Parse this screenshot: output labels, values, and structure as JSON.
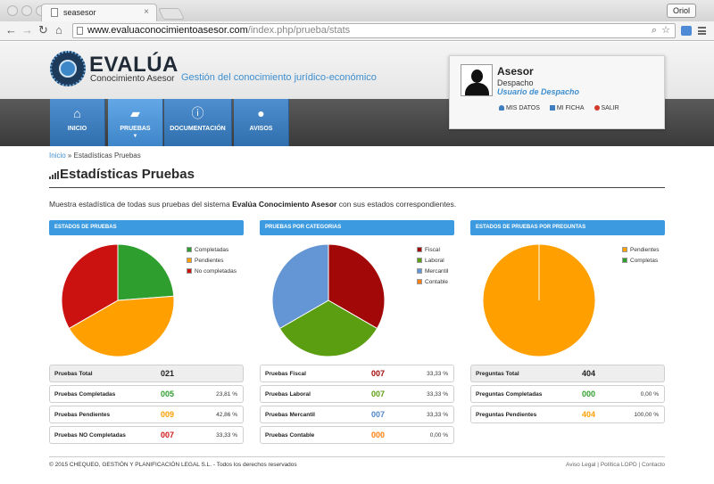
{
  "browser": {
    "tab_title": "seasesor",
    "tab_close": "×",
    "user_button": "Oriol",
    "url_host": "www.evaluaconocimientoasesor.com",
    "url_path": "/index.php/prueba/stats",
    "nav_back": "←",
    "nav_forward": "→",
    "nav_reload": "↻",
    "nav_home": "⌂",
    "search_glyph": "⌕",
    "star_glyph": "☆"
  },
  "site": {
    "logo_title": "EVALÚA",
    "logo_subtitle": "Conocimiento Asesor",
    "tagline": "Gestión del conocimiento jurídico-económico"
  },
  "user": {
    "name": "Asesor",
    "department": "Despacho",
    "role": "Usuario de Despacho",
    "links": [
      {
        "label": "MIS DATOS",
        "icon": "user-icon",
        "color": "#3f7fc0"
      },
      {
        "label": "MI FICHA",
        "icon": "bookmark-icon",
        "color": "#3f7fc0"
      },
      {
        "label": "SALIR",
        "icon": "logout-arrow-icon",
        "color": "#d03b2b"
      }
    ]
  },
  "nav": {
    "items": [
      {
        "label": "INICIO",
        "icon": "home-icon",
        "glyph": "⌂",
        "active": false
      },
      {
        "label": "PRUEBAS",
        "icon": "folders-icon",
        "glyph": "▰",
        "active": true,
        "caret": "▼"
      },
      {
        "label": "DOCUMENTACIÓN",
        "icon": "info-icon",
        "glyph": "ⓘ",
        "active": false
      },
      {
        "label": "AVISOS",
        "icon": "chat-bubbles-icon",
        "glyph": "●",
        "active": false
      }
    ]
  },
  "breadcrumb": {
    "home": "Inicio",
    "separator": "»",
    "current": "Estadísticas Pruebas"
  },
  "page": {
    "title": "Estadísticas Pruebas",
    "intro_before": "Muestra estadística de todas sus pruebas del sistema ",
    "intro_bold": "Evalúa Conocimiento Asesor",
    "intro_after": " con sus estados correspondientes."
  },
  "chart_data": [
    {
      "type": "pie",
      "title": "ESTADOS DE PRUEBAS",
      "legend_position": "top-right",
      "slices": [
        {
          "label": "Completadas",
          "value": 23.81,
          "color": "#2e9e2e"
        },
        {
          "label": "Pendientes",
          "value": 42.86,
          "color": "#ff9f00"
        },
        {
          "label": "No completadas",
          "value": 33.33,
          "color": "#cc1111"
        }
      ]
    },
    {
      "type": "pie",
      "title": "PRUEBAS POR CATEGORIAS",
      "legend_position": "top-right",
      "slices": [
        {
          "label": "Fiscal",
          "value": 33.33,
          "color": "#a30808"
        },
        {
          "label": "Laboral",
          "value": 33.33,
          "color": "#5c9e12"
        },
        {
          "label": "Mercantil",
          "value": 33.33,
          "color": "#6495d4"
        },
        {
          "label": "Contable",
          "value": 0,
          "color": "#ff7f0e"
        }
      ]
    },
    {
      "type": "pie",
      "title": "ESTADOS DE PRUEBAS POR PREGUNTAS",
      "legend_position": "top-right",
      "slices": [
        {
          "label": "Pendientes",
          "value": 100,
          "color": "#ff9f00"
        },
        {
          "label": "Completas",
          "value": 0,
          "color": "#2e9e2e"
        }
      ]
    }
  ],
  "stats": [
    {
      "rows": [
        {
          "label": "Pruebas Total",
          "value": "021",
          "pct": "",
          "color": "#222222",
          "total": true
        },
        {
          "label": "Pruebas Completadas",
          "value": "005",
          "pct": "23,81 %",
          "color": "#2e9e2e",
          "total": false
        },
        {
          "label": "Pruebas Pendientes",
          "value": "009",
          "pct": "42,86 %",
          "color": "#ff9f00",
          "total": false
        },
        {
          "label": "Pruebas NO Completadas",
          "value": "007",
          "pct": "33,33 %",
          "color": "#d01a1a",
          "total": false
        }
      ]
    },
    {
      "rows": [
        {
          "label": "Pruebas Fiscal",
          "value": "007",
          "pct": "33,33 %",
          "color": "#a30808",
          "total": false
        },
        {
          "label": "Pruebas Laboral",
          "value": "007",
          "pct": "33,33 %",
          "color": "#5c9e12",
          "total": false
        },
        {
          "label": "Pruebas Mercantil",
          "value": "007",
          "pct": "33,33 %",
          "color": "#4f86c8",
          "total": false
        },
        {
          "label": "Pruebas Contable",
          "value": "000",
          "pct": "0,00 %",
          "color": "#ff7f0e",
          "total": false
        }
      ]
    },
    {
      "rows": [
        {
          "label": "Preguntas Total",
          "value": "404",
          "pct": "",
          "color": "#222222",
          "total": true
        },
        {
          "label": "Preguntas Completadas",
          "value": "000",
          "pct": "0,00 %",
          "color": "#2e9e2e",
          "total": false
        },
        {
          "label": "Preguntas Pendientes",
          "value": "404",
          "pct": "100,00 %",
          "color": "#ff9f00",
          "total": false
        }
      ]
    }
  ],
  "footer": {
    "copyright": "© 2015 CHEQUEO, GESTIÓN Y PLANIFICACIÓN LEGAL S.L. - Todos los derechos reservados",
    "links": [
      "Aviso Legal",
      "Política LOPD",
      "Contacto"
    ],
    "separator": "|"
  }
}
